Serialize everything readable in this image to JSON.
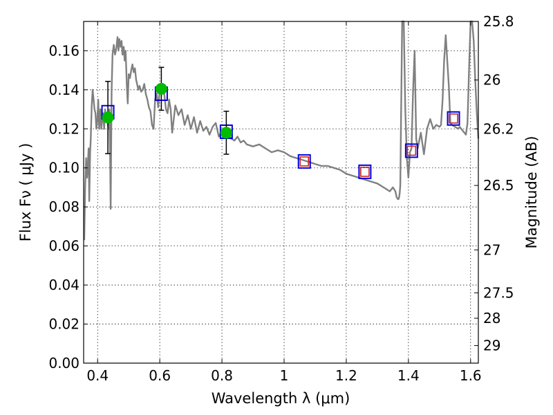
{
  "chart_data": {
    "type": "scatter",
    "xlabel": "Wavelength  λ (μm)",
    "ylabel": "Flux  Fν  ( μJy )",
    "ylabel_right": "Magnitude (AB)",
    "xlim": [
      0.355,
      1.625
    ],
    "ylim": [
      0.0,
      0.175
    ],
    "grid": true,
    "x_ticks": [
      0.4,
      0.6,
      0.8,
      1.0,
      1.2,
      1.4,
      1.6
    ],
    "x_tick_labels": [
      "0.4",
      "0.6",
      "0.8",
      "1",
      "1.2",
      "1.4",
      "1.6"
    ],
    "y_ticks": [
      0.0,
      0.02,
      0.04,
      0.06,
      0.08,
      0.1,
      0.12,
      0.14,
      0.16
    ],
    "y_tick_labels": [
      "0.00",
      "0.02",
      "0.04",
      "0.06",
      "0.08",
      "0.10",
      "0.12",
      "0.14",
      "0.16"
    ],
    "right_ticks": [
      {
        "label": "25.8",
        "flux": 0.175
      },
      {
        "label": "26",
        "flux": 0.145
      },
      {
        "label": "26.2",
        "flux": 0.12
      },
      {
        "label": "26.5",
        "flux": 0.091
      },
      {
        "label": "27",
        "flux": 0.058
      },
      {
        "label": "27.5",
        "flux": 0.036
      },
      {
        "label": "28",
        "flux": 0.023
      },
      {
        "label": "29",
        "flux": 0.009
      }
    ],
    "colors": {
      "model_line": "#808080",
      "observed": "#00bb00",
      "model_box": "#0000dd",
      "band_box": "#cc2222",
      "errbar": "#000000"
    },
    "series": [
      {
        "kind": "line",
        "x": [
          0.357,
          0.36,
          0.363,
          0.366,
          0.368,
          0.371,
          0.373,
          0.376,
          0.378,
          0.381,
          0.384,
          0.387,
          0.39,
          0.393,
          0.396,
          0.399,
          0.402,
          0.405,
          0.409,
          0.412,
          0.415,
          0.418,
          0.421,
          0.424,
          0.427,
          0.43,
          0.433,
          0.436,
          0.438,
          0.44,
          0.442,
          0.445,
          0.448,
          0.452,
          0.456,
          0.46,
          0.464,
          0.467,
          0.47,
          0.474,
          0.477,
          0.48,
          0.484,
          0.487,
          0.49,
          0.494,
          0.497,
          0.5,
          0.504,
          0.508,
          0.512,
          0.516,
          0.52,
          0.524,
          0.527,
          0.531,
          0.535,
          0.54,
          0.545,
          0.55,
          0.555,
          0.56,
          0.565,
          0.57,
          0.575,
          0.58,
          0.585,
          0.59,
          0.595,
          0.6,
          0.605,
          0.61,
          0.615,
          0.62,
          0.625,
          0.63,
          0.635,
          0.64,
          0.645,
          0.65,
          0.66,
          0.67,
          0.68,
          0.69,
          0.7,
          0.71,
          0.72,
          0.73,
          0.74,
          0.75,
          0.76,
          0.77,
          0.78,
          0.79,
          0.8,
          0.81,
          0.82,
          0.83,
          0.84,
          0.85,
          0.86,
          0.87,
          0.88,
          0.9,
          0.92,
          0.94,
          0.96,
          0.98,
          1.0,
          1.02,
          1.04,
          1.06,
          1.08,
          1.1,
          1.12,
          1.14,
          1.16,
          1.18,
          1.2,
          1.22,
          1.24,
          1.26,
          1.28,
          1.3,
          1.32,
          1.34,
          1.35,
          1.358,
          1.362,
          1.366,
          1.368,
          1.37,
          1.372,
          1.374,
          1.376,
          1.38,
          1.385,
          1.39,
          1.395,
          1.4,
          1.405,
          1.41,
          1.415,
          1.42,
          1.425,
          1.43,
          1.44,
          1.45,
          1.46,
          1.47,
          1.48,
          1.49,
          1.5,
          1.505,
          1.51,
          1.515,
          1.52,
          1.525,
          1.53,
          1.535,
          1.54,
          1.55,
          1.56,
          1.565,
          1.57,
          1.575,
          1.58,
          1.585,
          1.59,
          1.595,
          1.6,
          1.605,
          1.61,
          1.615,
          1.62,
          1.625
        ],
        "values": [
          0.063,
          0.09,
          0.105,
          0.095,
          0.1,
          0.11,
          0.083,
          0.108,
          0.115,
          0.132,
          0.14,
          0.135,
          0.13,
          0.128,
          0.12,
          0.124,
          0.135,
          0.12,
          0.13,
          0.12,
          0.125,
          0.128,
          0.12,
          0.13,
          0.125,
          0.127,
          0.122,
          0.12,
          0.13,
          0.108,
          0.079,
          0.14,
          0.158,
          0.163,
          0.158,
          0.161,
          0.167,
          0.16,
          0.166,
          0.162,
          0.165,
          0.158,
          0.162,
          0.155,
          0.16,
          0.142,
          0.133,
          0.148,
          0.146,
          0.15,
          0.153,
          0.149,
          0.151,
          0.145,
          0.143,
          0.14,
          0.142,
          0.139,
          0.14,
          0.143,
          0.138,
          0.135,
          0.131,
          0.129,
          0.122,
          0.12,
          0.135,
          0.138,
          0.131,
          0.14,
          0.138,
          0.143,
          0.137,
          0.13,
          0.128,
          0.135,
          0.13,
          0.118,
          0.125,
          0.132,
          0.127,
          0.13,
          0.122,
          0.127,
          0.12,
          0.126,
          0.118,
          0.124,
          0.119,
          0.121,
          0.117,
          0.121,
          0.123,
          0.116,
          0.119,
          0.116,
          0.118,
          0.115,
          0.114,
          0.116,
          0.113,
          0.114,
          0.112,
          0.111,
          0.112,
          0.11,
          0.108,
          0.109,
          0.108,
          0.106,
          0.105,
          0.104,
          0.103,
          0.102,
          0.101,
          0.101,
          0.1,
          0.099,
          0.097,
          0.096,
          0.095,
          0.094,
          0.093,
          0.092,
          0.09,
          0.088,
          0.09,
          0.088,
          0.085,
          0.084,
          0.084,
          0.085,
          0.087,
          0.091,
          0.12,
          0.175,
          0.175,
          0.13,
          0.105,
          0.095,
          0.108,
          0.11,
          0.14,
          0.16,
          0.115,
          0.11,
          0.118,
          0.107,
          0.12,
          0.125,
          0.12,
          0.122,
          0.121,
          0.122,
          0.135,
          0.155,
          0.168,
          0.155,
          0.142,
          0.123,
          0.122,
          0.121,
          0.12,
          0.121,
          0.12,
          0.119,
          0.118,
          0.117,
          0.123,
          0.15,
          0.175,
          0.175,
          0.165,
          0.145,
          0.128,
          0.115
        ]
      },
      {
        "kind": "observed",
        "x": [
          0.433,
          0.605,
          0.814
        ],
        "values": [
          0.1258,
          0.1405,
          0.118
        ],
        "yerr": [
          0.0185,
          0.011,
          0.011
        ]
      },
      {
        "kind": "model_box",
        "x": [
          0.433,
          0.605,
          0.814,
          1.065,
          1.26,
          1.41,
          1.545
        ],
        "values": [
          0.1285,
          0.138,
          0.1185,
          0.1033,
          0.098,
          0.1088,
          0.1253
        ]
      },
      {
        "kind": "band_box",
        "x": [
          1.065,
          1.26,
          1.41,
          1.545
        ],
        "values": [
          0.1033,
          0.098,
          0.1088,
          0.1253
        ]
      }
    ]
  }
}
